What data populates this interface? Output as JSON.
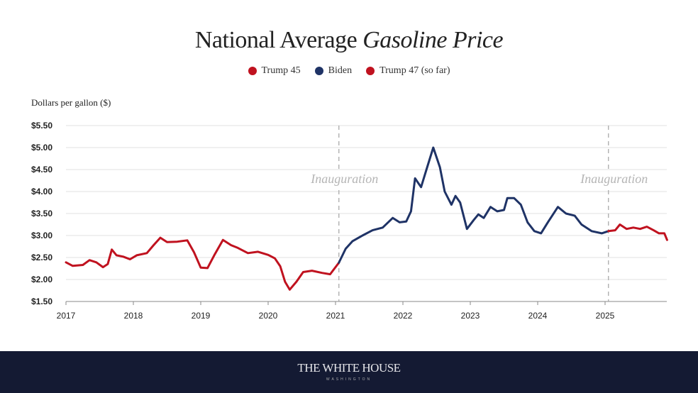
{
  "title_main": "National Average",
  "title_italic": "Gasoline Price",
  "footer": {
    "logo_text": "THE WHITE HOUSE",
    "logo_sub": "WASHINGTON"
  },
  "chart_data": {
    "type": "line",
    "title": "National Average Gasoline Price",
    "ylabel": "Dollars per gallon ($)",
    "xlabel": "",
    "xlim": [
      2017,
      2025.92
    ],
    "ylim": [
      1.5,
      5.5
    ],
    "grid": "horizontal",
    "legend_placement": "top-center",
    "x_ticks": [
      "2017",
      "2018",
      "2019",
      "2020",
      "2021",
      "2022",
      "2023",
      "2024",
      "2025"
    ],
    "y_ticks": [
      "$5.50",
      "$5.00",
      "$4.50",
      "$4.00",
      "$3.50",
      "$3.00",
      "$2.50",
      "$2.00",
      "$1.50"
    ],
    "y_tick_values": [
      5.5,
      5.0,
      4.5,
      4.0,
      3.5,
      3.0,
      2.5,
      2.0,
      1.5
    ],
    "annotations": [
      {
        "text": "Inauguration",
        "x": 2021.05
      },
      {
        "text": "Inauguration",
        "x": 2025.05
      }
    ],
    "series": [
      {
        "name": "Trump 45",
        "color": "#c0121f",
        "points": [
          [
            2017.0,
            2.39
          ],
          [
            2017.1,
            2.31
          ],
          [
            2017.25,
            2.33
          ],
          [
            2017.35,
            2.44
          ],
          [
            2017.45,
            2.39
          ],
          [
            2017.55,
            2.28
          ],
          [
            2017.62,
            2.35
          ],
          [
            2017.68,
            2.68
          ],
          [
            2017.75,
            2.55
          ],
          [
            2017.85,
            2.52
          ],
          [
            2017.95,
            2.46
          ],
          [
            2018.05,
            2.55
          ],
          [
            2018.2,
            2.6
          ],
          [
            2018.3,
            2.78
          ],
          [
            2018.4,
            2.95
          ],
          [
            2018.5,
            2.85
          ],
          [
            2018.65,
            2.86
          ],
          [
            2018.8,
            2.89
          ],
          [
            2018.9,
            2.62
          ],
          [
            2019.0,
            2.27
          ],
          [
            2019.1,
            2.26
          ],
          [
            2019.2,
            2.55
          ],
          [
            2019.33,
            2.9
          ],
          [
            2019.45,
            2.78
          ],
          [
            2019.55,
            2.72
          ],
          [
            2019.7,
            2.6
          ],
          [
            2019.85,
            2.63
          ],
          [
            2020.0,
            2.56
          ],
          [
            2020.1,
            2.48
          ],
          [
            2020.18,
            2.3
          ],
          [
            2020.25,
            1.95
          ],
          [
            2020.32,
            1.77
          ],
          [
            2020.42,
            1.95
          ],
          [
            2020.52,
            2.17
          ],
          [
            2020.65,
            2.2
          ],
          [
            2020.8,
            2.15
          ],
          [
            2020.92,
            2.12
          ],
          [
            2021.05,
            2.38
          ]
        ]
      },
      {
        "name": "Biden",
        "color": "#1f3366",
        "points": [
          [
            2021.05,
            2.38
          ],
          [
            2021.15,
            2.7
          ],
          [
            2021.25,
            2.87
          ],
          [
            2021.4,
            3.0
          ],
          [
            2021.55,
            3.12
          ],
          [
            2021.7,
            3.18
          ],
          [
            2021.85,
            3.4
          ],
          [
            2021.95,
            3.3
          ],
          [
            2022.05,
            3.32
          ],
          [
            2022.12,
            3.55
          ],
          [
            2022.18,
            4.3
          ],
          [
            2022.27,
            4.1
          ],
          [
            2022.35,
            4.5
          ],
          [
            2022.45,
            5.0
          ],
          [
            2022.55,
            4.55
          ],
          [
            2022.62,
            4.0
          ],
          [
            2022.72,
            3.7
          ],
          [
            2022.78,
            3.9
          ],
          [
            2022.85,
            3.75
          ],
          [
            2022.95,
            3.15
          ],
          [
            2023.05,
            3.35
          ],
          [
            2023.12,
            3.48
          ],
          [
            2023.2,
            3.4
          ],
          [
            2023.3,
            3.65
          ],
          [
            2023.4,
            3.55
          ],
          [
            2023.5,
            3.58
          ],
          [
            2023.55,
            3.85
          ],
          [
            2023.65,
            3.85
          ],
          [
            2023.75,
            3.7
          ],
          [
            2023.85,
            3.3
          ],
          [
            2023.95,
            3.1
          ],
          [
            2024.05,
            3.05
          ],
          [
            2024.15,
            3.3
          ],
          [
            2024.3,
            3.65
          ],
          [
            2024.42,
            3.5
          ],
          [
            2024.55,
            3.45
          ],
          [
            2024.65,
            3.25
          ],
          [
            2024.8,
            3.1
          ],
          [
            2024.95,
            3.05
          ],
          [
            2025.05,
            3.1
          ]
        ]
      },
      {
        "name": "Trump 47 (so far)",
        "color": "#c0121f",
        "points": [
          [
            2025.05,
            3.1
          ],
          [
            2025.15,
            3.12
          ],
          [
            2025.22,
            3.25
          ],
          [
            2025.32,
            3.15
          ],
          [
            2025.42,
            3.18
          ],
          [
            2025.52,
            3.15
          ],
          [
            2025.62,
            3.2
          ],
          [
            2025.72,
            3.12
          ],
          [
            2025.8,
            3.05
          ],
          [
            2025.88,
            3.05
          ],
          [
            2025.92,
            2.9
          ]
        ]
      }
    ]
  }
}
